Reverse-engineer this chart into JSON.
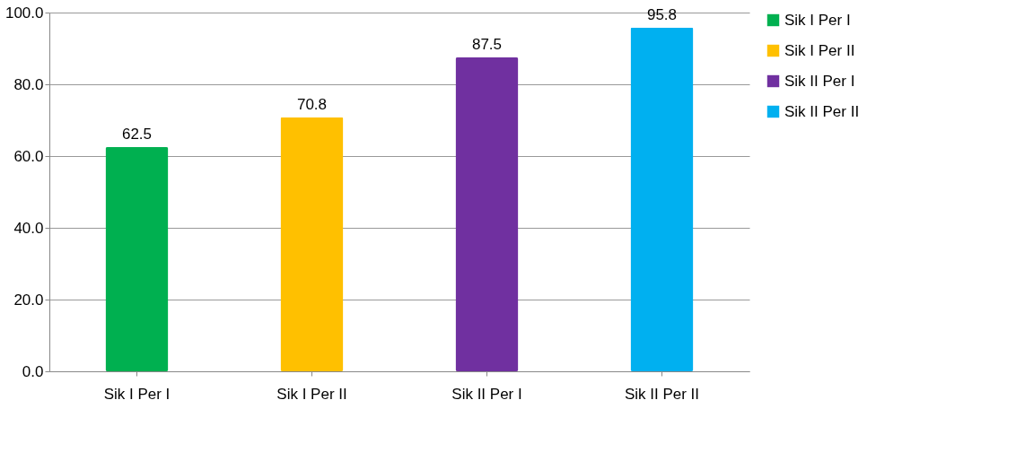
{
  "chart_data": {
    "type": "bar",
    "categories": [
      "Sik I Per I",
      "Sik I Per II",
      "Sik II Per I",
      "Sik II Per II"
    ],
    "series": [
      {
        "name": "Sik I Per I",
        "color": "#00b050",
        "values": [
          62.5,
          null,
          null,
          null
        ]
      },
      {
        "name": "Sik I Per II",
        "color": "#ffc000",
        "values": [
          null,
          70.8,
          null,
          null
        ]
      },
      {
        "name": "Sik II Per I",
        "color": "#7030a0",
        "values": [
          null,
          null,
          87.5,
          null
        ]
      },
      {
        "name": "Sik II Per II",
        "color": "#00b0f0",
        "values": [
          null,
          null,
          null,
          95.8
        ]
      }
    ],
    "ylim": [
      0,
      100
    ],
    "yticks": [
      {
        "value": 0,
        "label": "0.0"
      },
      {
        "value": 20,
        "label": "20.0"
      },
      {
        "value": 40,
        "label": "40.0"
      },
      {
        "value": 60,
        "label": "60.0"
      },
      {
        "value": 80,
        "label": "80.0"
      },
      {
        "value": 100,
        "label": "100.0"
      }
    ],
    "grid": "y",
    "legend": "right",
    "data_labels": true
  }
}
